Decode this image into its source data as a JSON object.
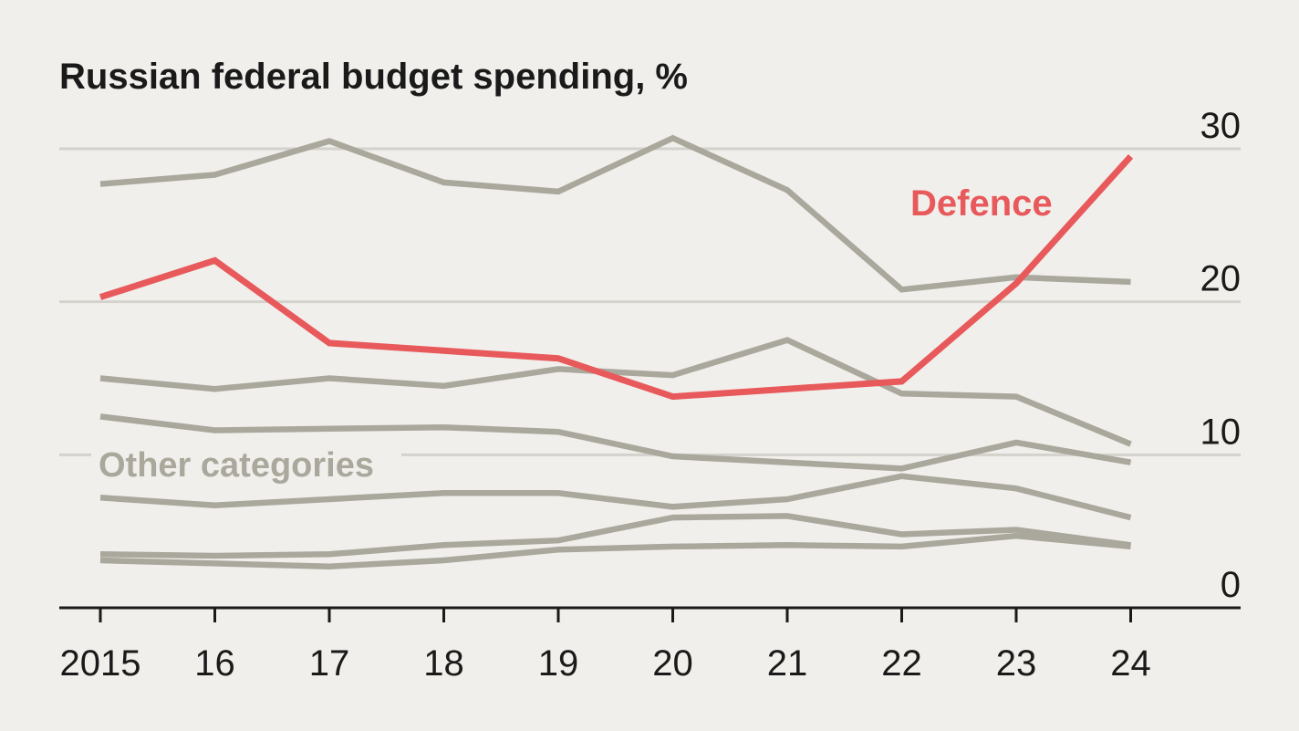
{
  "chart_data": {
    "type": "line",
    "title": "Russian federal budget spending, %",
    "x": [
      "2015",
      "16",
      "17",
      "18",
      "19",
      "20",
      "21",
      "22",
      "23",
      "24"
    ],
    "ylim": [
      0,
      30
    ],
    "yticks": [
      0,
      10,
      20,
      30
    ],
    "grid": true,
    "colors": {
      "defence": "#e8595b",
      "other": "#aaa89c",
      "grid": "#d4d2cc",
      "axis": "#1a1a1a"
    },
    "series": [
      {
        "name": "Defence",
        "highlight": true,
        "values": [
          20.3,
          22.7,
          17.3,
          16.8,
          16.3,
          13.8,
          14.3,
          14.8,
          21.2,
          29.5
        ]
      },
      {
        "name": "Other categories",
        "values": [
          27.7,
          28.3,
          30.5,
          27.8,
          27.2,
          30.7,
          27.3,
          20.8,
          21.6,
          21.3
        ]
      },
      {
        "name": "",
        "values": [
          15.0,
          14.3,
          15.0,
          14.5,
          15.6,
          15.2,
          17.5,
          14.0,
          13.8,
          10.7
        ]
      },
      {
        "name": "",
        "values": [
          12.5,
          11.6,
          11.7,
          11.8,
          11.5,
          9.9,
          9.5,
          9.1,
          10.8,
          9.5
        ]
      },
      {
        "name": "",
        "values": [
          7.2,
          6.7,
          7.1,
          7.5,
          7.5,
          6.6,
          7.1,
          8.6,
          7.8,
          5.9
        ]
      },
      {
        "name": "",
        "values": [
          3.5,
          3.4,
          3.5,
          4.1,
          4.4,
          5.9,
          6.0,
          4.8,
          5.1,
          4.1
        ]
      },
      {
        "name": "",
        "values": [
          3.1,
          2.9,
          2.7,
          3.1,
          3.8,
          4.0,
          4.1,
          4.0,
          4.7,
          4.0
        ]
      }
    ],
    "labels": {
      "defence": "Defence",
      "other": "Other categories"
    }
  }
}
